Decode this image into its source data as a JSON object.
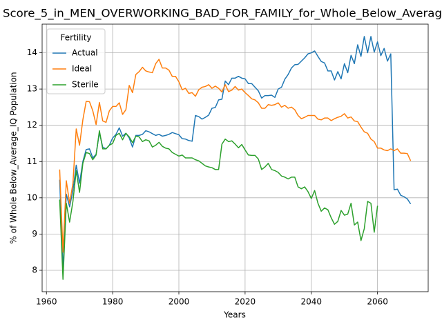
{
  "chart_data": {
    "type": "line",
    "title": "Score_5_in_MEN_OVERWORKING_BAD_FOR_FAMILY_for_Whole_Below_Averag",
    "x_label": "Years",
    "y_label": "% of Whole Below_Average_IQ Population",
    "legend_title": "Fertility",
    "legend_position": "upper left",
    "grid": true,
    "x": [
      1964,
      1965,
      1966,
      1967,
      1968,
      1969,
      1970,
      1971,
      1972,
      1973,
      1974,
      1975,
      1976,
      1977,
      1978,
      1979,
      1980,
      1981,
      1982,
      1983,
      1984,
      1985,
      1986,
      1987,
      1988,
      1989,
      1990,
      1991,
      1992,
      1993,
      1994,
      1995,
      1996,
      1997,
      1998,
      1999,
      2000,
      2001,
      2002,
      2003,
      2004,
      2005,
      2006,
      2007,
      2008,
      2009,
      2010,
      2011,
      2012,
      2013,
      2014,
      2015,
      2016,
      2017,
      2018,
      2019,
      2020,
      2021,
      2022,
      2023,
      2024,
      2025,
      2026,
      2027,
      2028,
      2029,
      2030,
      2031,
      2032,
      2033,
      2034,
      2035,
      2036,
      2037,
      2038,
      2039,
      2040,
      2041,
      2042,
      2043,
      2044,
      2045,
      2046,
      2047,
      2048,
      2049,
      2050,
      2051,
      2052,
      2053,
      2054,
      2055,
      2056,
      2057,
      2058,
      2059,
      2060,
      2061,
      2062,
      2063,
      2064,
      2065,
      2066,
      2067,
      2068,
      2069,
      2070
    ],
    "series": [
      {
        "name": "Actual",
        "color": "#1f77b4",
        "values": [
          10.5,
          8.0,
          10.1,
          9.75,
          10.2,
          10.9,
          10.4,
          11.0,
          11.33,
          11.35,
          11.1,
          11.2,
          11.8,
          11.4,
          11.35,
          11.45,
          11.65,
          11.75,
          11.93,
          11.7,
          11.78,
          11.65,
          11.4,
          11.72,
          11.72,
          11.75,
          11.85,
          11.82,
          11.77,
          11.72,
          11.75,
          11.7,
          11.72,
          11.75,
          11.8,
          11.77,
          11.74,
          11.63,
          11.62,
          11.58,
          11.56,
          12.27,
          12.24,
          12.17,
          12.22,
          12.28,
          12.47,
          12.49,
          12.7,
          12.72,
          13.22,
          13.12,
          13.3,
          13.3,
          13.35,
          13.3,
          13.28,
          13.15,
          13.15,
          13.05,
          12.95,
          12.75,
          12.82,
          12.82,
          12.83,
          12.77,
          13.0,
          13.05,
          13.27,
          13.4,
          13.58,
          13.67,
          13.68,
          13.77,
          13.86,
          13.97,
          14.0,
          14.05,
          13.9,
          13.76,
          13.72,
          13.5,
          13.5,
          13.25,
          13.48,
          13.28,
          13.7,
          13.45,
          13.93,
          13.7,
          14.22,
          13.9,
          14.45,
          14.0,
          14.45,
          14.02,
          14.3,
          13.92,
          14.12,
          13.77,
          13.97,
          10.22,
          10.24,
          10.07,
          10.03,
          9.97,
          9.83
        ]
      },
      {
        "name": "Ideal",
        "color": "#ff7f0e",
        "values": [
          10.78,
          8.5,
          10.47,
          9.85,
          10.4,
          11.9,
          11.45,
          12.15,
          12.66,
          12.65,
          12.4,
          12.02,
          12.63,
          12.12,
          12.08,
          12.4,
          12.52,
          12.52,
          12.62,
          12.3,
          12.43,
          13.1,
          12.9,
          13.4,
          13.48,
          13.6,
          13.5,
          13.47,
          13.45,
          13.7,
          13.82,
          13.58,
          13.58,
          13.52,
          13.35,
          13.35,
          13.2,
          12.98,
          13.02,
          12.88,
          12.9,
          12.8,
          12.98,
          13.05,
          13.07,
          13.12,
          13.02,
          13.08,
          13.02,
          12.92,
          13.12,
          12.93,
          12.97,
          13.07,
          12.97,
          13.0,
          12.9,
          12.82,
          12.73,
          12.7,
          12.62,
          12.47,
          12.47,
          12.57,
          12.55,
          12.57,
          12.62,
          12.5,
          12.55,
          12.47,
          12.5,
          12.43,
          12.27,
          12.18,
          12.22,
          12.27,
          12.27,
          12.27,
          12.17,
          12.15,
          12.2,
          12.2,
          12.13,
          12.18,
          12.22,
          12.25,
          12.32,
          12.2,
          12.23,
          12.12,
          12.1,
          11.95,
          11.82,
          11.78,
          11.62,
          11.55,
          11.37,
          11.37,
          11.32,
          11.3,
          11.35,
          11.3,
          11.35,
          11.23,
          11.23,
          11.22,
          11.02
        ]
      },
      {
        "name": "Sterile",
        "color": "#2ca02c",
        "values": [
          9.95,
          7.75,
          9.85,
          9.33,
          9.9,
          10.75,
          10.15,
          10.95,
          11.25,
          11.22,
          11.05,
          11.18,
          11.85,
          11.35,
          11.35,
          11.45,
          11.5,
          11.72,
          11.78,
          11.6,
          11.78,
          11.68,
          11.52,
          11.7,
          11.68,
          11.55,
          11.6,
          11.57,
          11.4,
          11.45,
          11.53,
          11.42,
          11.37,
          11.35,
          11.25,
          11.2,
          11.15,
          11.18,
          11.1,
          11.1,
          11.1,
          11.05,
          11.02,
          10.95,
          10.88,
          10.85,
          10.83,
          10.78,
          10.78,
          11.48,
          11.62,
          11.55,
          11.57,
          11.48,
          11.38,
          11.47,
          11.32,
          11.18,
          11.17,
          11.17,
          11.07,
          10.78,
          10.85,
          10.95,
          10.78,
          10.75,
          10.7,
          10.6,
          10.57,
          10.52,
          10.57,
          10.57,
          10.3,
          10.25,
          10.3,
          10.17,
          9.98,
          10.2,
          9.85,
          9.63,
          9.72,
          9.67,
          9.45,
          9.27,
          9.35,
          9.65,
          9.52,
          9.55,
          9.85,
          9.25,
          9.33,
          8.82,
          9.15,
          9.9,
          9.85,
          9.05,
          9.78,
          null,
          null,
          null,
          null,
          null,
          null,
          null,
          null,
          null,
          null
        ]
      }
    ],
    "xlim": [
      1958.7,
      2075.3
    ],
    "xticks": [
      1960,
      1980,
      2000,
      2020,
      2040,
      2060
    ],
    "ylim": [
      7.41,
      14.79
    ],
    "yticks": [
      8,
      9,
      10,
      11,
      12,
      13,
      14
    ]
  }
}
